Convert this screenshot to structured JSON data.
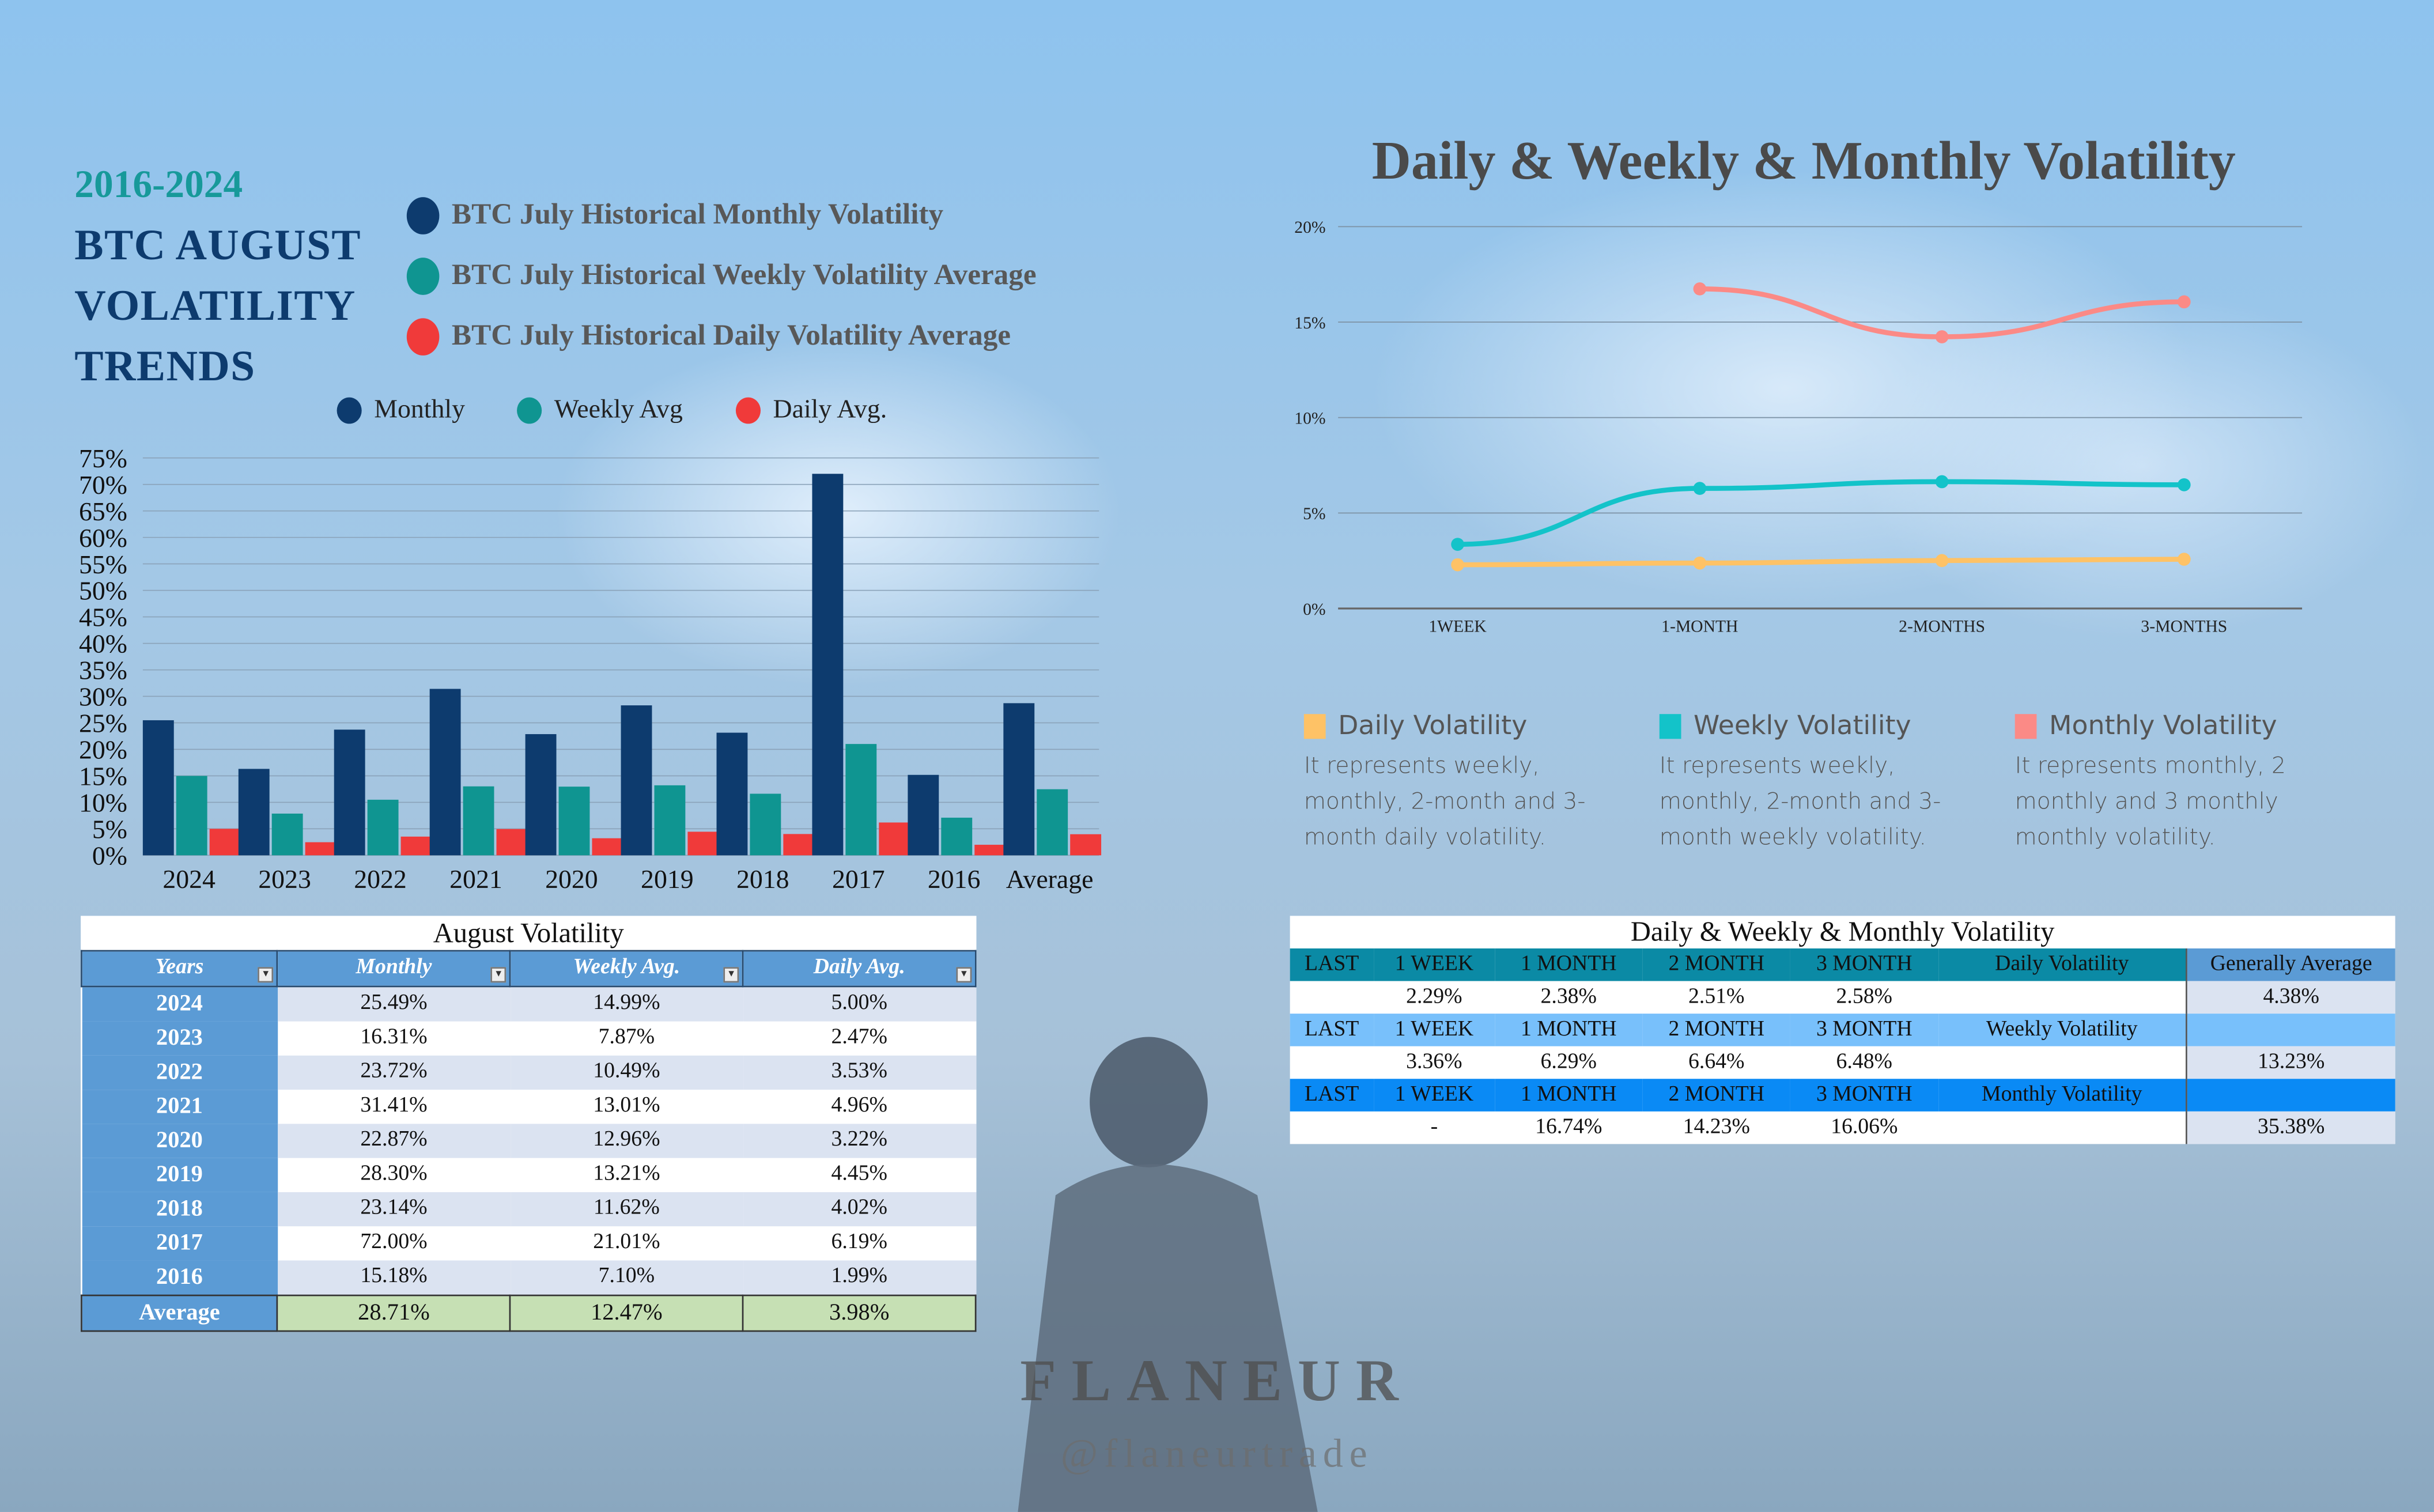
{
  "header": {
    "years": "2016-2024",
    "title_lines": [
      "BTC AUGUST",
      "VOLATILITY",
      "TRENDS"
    ]
  },
  "big_legend": [
    {
      "label": "BTC July Historical Monthly Volatility",
      "color": "#0d3b6e"
    },
    {
      "label": "BTC July Historical Weekly Volatility Average",
      "color": "#0f9591"
    },
    {
      "label": "BTC July Historical Daily Volatility Average",
      "color": "#f03a3a"
    }
  ],
  "chart_data": [
    {
      "type": "bar",
      "title": "",
      "xlabel": "",
      "ylabel": "",
      "categories": [
        "2024",
        "2023",
        "2022",
        "2021",
        "2020",
        "2019",
        "2018",
        "2017",
        "2016",
        "Average"
      ],
      "ylim": [
        0,
        75
      ],
      "yticks": [
        "75%",
        "70%",
        "65%",
        "60%",
        "55%",
        "50%",
        "45%",
        "40%",
        "35%",
        "30%",
        "25%",
        "20%",
        "15%",
        "10%",
        "5%",
        "0%"
      ],
      "legend_position": "top",
      "grid": true,
      "series": [
        {
          "name": "Monthly",
          "color": "#0d3b6e",
          "values": [
            25.49,
            16.31,
            23.72,
            31.41,
            22.87,
            28.3,
            23.14,
            72.0,
            15.18,
            28.71
          ]
        },
        {
          "name": "Weekly Avg",
          "color": "#0f9591",
          "values": [
            14.99,
            7.87,
            10.49,
            13.01,
            12.96,
            13.21,
            11.62,
            21.01,
            7.1,
            12.47
          ]
        },
        {
          "name": "Daily Avg.",
          "color": "#f03a3a",
          "values": [
            5.0,
            2.47,
            3.53,
            4.96,
            3.22,
            4.45,
            4.02,
            6.19,
            1.99,
            3.98
          ]
        }
      ]
    },
    {
      "type": "line",
      "title": "Daily & Weekly & Monthly Volatility",
      "xlabel": "",
      "ylabel": "",
      "categories": [
        "1WEEK",
        "1-MONTH",
        "2-MONTHS",
        "3-MONTHS"
      ],
      "ylim": [
        0,
        20
      ],
      "yticks": [
        "20%",
        "15%",
        "10%",
        "5%",
        "0%"
      ],
      "grid": true,
      "legend_position": "bottom",
      "series": [
        {
          "name": "Daily Volatility",
          "color": "#fec266",
          "values": [
            2.29,
            2.38,
            2.51,
            2.58
          ],
          "desc": "It represents weekly, monthly, 2-month and 3-month daily volatility."
        },
        {
          "name": "Weekly Volatility",
          "color": "#13c3c9",
          "values": [
            3.36,
            6.29,
            6.64,
            6.48
          ],
          "desc": "It represents weekly, monthly, 2-month and 3-month weekly volatility."
        },
        {
          "name": "Monthly Volatility",
          "color": "#fb8a86",
          "values": [
            null,
            16.74,
            14.23,
            16.06
          ],
          "desc": "It represents monthly, 2 monthly and 3 monthly monthly volatility."
        }
      ]
    }
  ],
  "august_table": {
    "title": "August Volatility",
    "headers": [
      "Years",
      "Monthly",
      "Weekly Avg.",
      "Daily Avg."
    ],
    "rows": [
      [
        "2024",
        "25.49%",
        "14.99%",
        "5.00%"
      ],
      [
        "2023",
        "16.31%",
        "7.87%",
        "2.47%"
      ],
      [
        "2022",
        "23.72%",
        "10.49%",
        "3.53%"
      ],
      [
        "2021",
        "31.41%",
        "13.01%",
        "4.96%"
      ],
      [
        "2020",
        "22.87%",
        "12.96%",
        "3.22%"
      ],
      [
        "2019",
        "28.30%",
        "13.21%",
        "4.45%"
      ],
      [
        "2018",
        "23.14%",
        "11.62%",
        "4.02%"
      ],
      [
        "2017",
        "72.00%",
        "21.01%",
        "6.19%"
      ],
      [
        "2016",
        "15.18%",
        "7.10%",
        "1.99%"
      ]
    ],
    "average": [
      "Average",
      "28.71%",
      "12.47%",
      "3.98%"
    ]
  },
  "dwm_table": {
    "title": "Daily & Weekly & Monthly Volatility",
    "general_header": "Generally Average",
    "groups": [
      {
        "header": [
          "LAST",
          "1 WEEK",
          "1 MONTH",
          "2 MONTH",
          "3 MONTH",
          "Daily Volatility"
        ],
        "values": [
          "",
          "2.29%",
          "2.38%",
          "2.51%",
          "2.58%",
          ""
        ],
        "average": "4.38%"
      },
      {
        "header": [
          "LAST",
          "1 WEEK",
          "1 MONTH",
          "2 MONTH",
          "3 MONTH",
          "Weekly Volatility"
        ],
        "values": [
          "",
          "3.36%",
          "6.29%",
          "6.64%",
          "6.48%",
          ""
        ],
        "average": "13.23%"
      },
      {
        "header": [
          "LAST",
          "1 WEEK",
          "1 MONTH",
          "2 MONTH",
          "3 MONTH",
          "Monthly Volatility"
        ],
        "values": [
          "",
          "-",
          "16.74%",
          "14.23%",
          "16.06%",
          ""
        ],
        "average": "35.38%"
      }
    ]
  },
  "brand": {
    "name": "FLANEUR",
    "handle": "@flaneurtrade"
  }
}
